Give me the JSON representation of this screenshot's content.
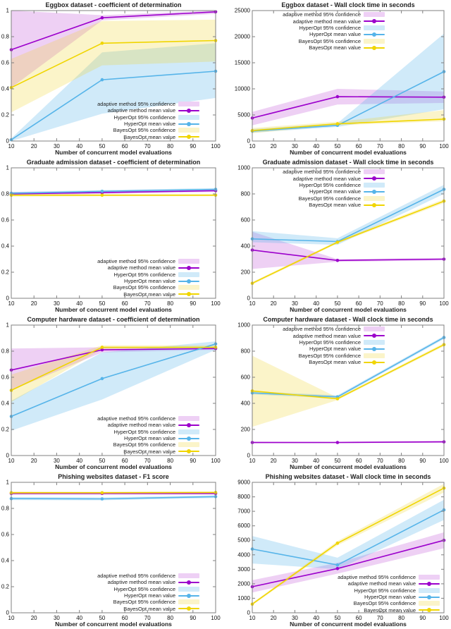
{
  "page": {
    "background": "#ffffff"
  },
  "xlabel": "Number of concurrent model evaluations",
  "legend_labels": [
    "adaptive method 95% confidence",
    "adaptive method mean value",
    "HyperOpt 95% confidence",
    "HyperOpt mean value",
    "BayesOpt 95% confidence",
    "BayesOpt mean value"
  ],
  "colors": {
    "adaptive": {
      "line": "#9c00cc",
      "band": "rgba(198,100,220,0.30)",
      "legend_band": "#eed0f5"
    },
    "hyperopt": {
      "line": "#56b4e9",
      "band": "rgba(86,180,233,0.28)",
      "legend_band": "#d0eaf9"
    },
    "bayesopt": {
      "line": "#f0d500",
      "band": "rgba(238,210,40,0.25)",
      "legend_band": "#fbf4c9"
    }
  },
  "chart_data": [
    {
      "id": "eggbox-r2",
      "type": "line",
      "title": "Eggbox dataset - coefficient of determination",
      "xlabel": "Number of concurrent model evaluations",
      "x": [
        10,
        50,
        100
      ],
      "xticks": [
        10,
        20,
        30,
        40,
        50,
        60,
        70,
        80,
        90,
        100
      ],
      "ylim": [
        0,
        1
      ],
      "yticks": [
        0,
        0.2,
        0.4,
        0.6,
        0.8,
        1
      ],
      "ytick_labels": [
        "0",
        "0.2",
        "0.4",
        "0.6",
        "0.8",
        "1"
      ],
      "series": [
        {
          "key": "adaptive",
          "name": "adaptive method",
          "mean": [
            0.7,
            0.945,
            0.99
          ],
          "lower": [
            0.41,
            0.925,
            0.975
          ],
          "upper": [
            1.0,
            0.965,
            1.0
          ]
        },
        {
          "key": "hyperopt",
          "name": "HyperOpt",
          "mean": [
            0.01,
            0.47,
            0.535
          ],
          "lower": [
            0.0,
            0.21,
            0.33
          ],
          "upper": [
            0.02,
            0.68,
            0.75
          ]
        },
        {
          "key": "bayesopt",
          "name": "BayesOpt",
          "mean": [
            0.41,
            0.75,
            0.77
          ],
          "lower": [
            0.22,
            0.58,
            0.61
          ],
          "upper": [
            0.63,
            0.92,
            0.93
          ]
        }
      ],
      "legend": {
        "pos": "bottom-right",
        "right": 37,
        "bottom": 24
      },
      "layout": {
        "ml": 16,
        "mr": 14
      }
    },
    {
      "id": "eggbox-wallclock",
      "type": "line",
      "title": "Eggbox dataset - Wall clock time in seconds",
      "xlabel": "Number of concurrent model evaluations",
      "x": [
        10,
        50,
        100
      ],
      "xticks": [
        10,
        20,
        30,
        40,
        50,
        60,
        70,
        80,
        90,
        100
      ],
      "ylim": [
        0,
        25000
      ],
      "yticks": [
        0,
        5000,
        10000,
        15000,
        20000,
        25000
      ],
      "ytick_labels": [
        "0",
        "5000",
        "10000",
        "15000",
        "20000",
        "25000"
      ],
      "series": [
        {
          "key": "adaptive",
          "name": "adaptive method",
          "mean": [
            4400,
            8500,
            8400
          ],
          "lower": [
            3000,
            7000,
            7300
          ],
          "upper": [
            5600,
            10000,
            9500
          ]
        },
        {
          "key": "hyperopt",
          "name": "HyperOpt",
          "mean": [
            1900,
            3000,
            13300
          ],
          "lower": [
            1600,
            2700,
            6100
          ],
          "upper": [
            2300,
            3400,
            20600
          ]
        },
        {
          "key": "bayesopt",
          "name": "BayesOpt",
          "mean": [
            2000,
            3300,
            4200
          ],
          "lower": [
            1500,
            3000,
            3800
          ],
          "upper": [
            2500,
            3700,
            5900
          ]
        }
      ],
      "legend": {
        "pos": "top-left",
        "right": 94,
        "top": 16
      },
      "layout": {
        "ml": 38,
        "mr": 10
      }
    },
    {
      "id": "graduate-r2",
      "type": "line",
      "title": "Graduate admission dataset - coefficient of determination",
      "xlabel": "Number of concurrent model evaluations",
      "x": [
        10,
        50,
        100
      ],
      "xticks": [
        10,
        20,
        30,
        40,
        50,
        60,
        70,
        80,
        90,
        100
      ],
      "ylim": [
        0,
        1
      ],
      "yticks": [
        0,
        0.2,
        0.4,
        0.6,
        0.8,
        1
      ],
      "ytick_labels": [
        "0",
        "0.2",
        "0.4",
        "0.6",
        "0.8",
        "1"
      ],
      "series": [
        {
          "key": "adaptive",
          "name": "adaptive method",
          "mean": [
            0.8,
            0.81,
            0.825
          ],
          "lower": [
            0.79,
            0.8,
            0.815
          ],
          "upper": [
            0.815,
            0.82,
            0.835
          ]
        },
        {
          "key": "hyperopt",
          "name": "HyperOpt",
          "mean": [
            0.805,
            0.82,
            0.835
          ],
          "lower": [
            0.795,
            0.81,
            0.825
          ],
          "upper": [
            0.815,
            0.83,
            0.845
          ]
        },
        {
          "key": "bayesopt",
          "name": "BayesOpt",
          "mean": [
            0.79,
            0.79,
            0.79
          ],
          "lower": [
            0.78,
            0.782,
            0.782
          ],
          "upper": [
            0.8,
            0.798,
            0.798
          ]
        }
      ],
      "legend": {
        "pos": "bottom-right",
        "right": 37,
        "bottom": 24
      },
      "layout": {
        "ml": 16,
        "mr": 14
      }
    },
    {
      "id": "graduate-wallclock",
      "type": "line",
      "title": "Graduate admission dataset - Wall clock time in seconds",
      "xlabel": "Number of concurrent model evaluations",
      "x": [
        10,
        50,
        100
      ],
      "xticks": [
        10,
        20,
        30,
        40,
        50,
        60,
        70,
        80,
        90,
        100
      ],
      "ylim": [
        0,
        1000
      ],
      "yticks": [
        0,
        200,
        400,
        600,
        800,
        1000
      ],
      "ytick_labels": [
        "0",
        "200",
        "400",
        "600",
        "800",
        "1000"
      ],
      "series": [
        {
          "key": "adaptive",
          "name": "adaptive method",
          "mean": [
            370,
            290,
            300
          ],
          "lower": [
            225,
            280,
            290
          ],
          "upper": [
            510,
            300,
            310
          ]
        },
        {
          "key": "hyperopt",
          "name": "HyperOpt",
          "mean": [
            455,
            435,
            835
          ],
          "lower": [
            430,
            410,
            800
          ],
          "upper": [
            515,
            460,
            870
          ]
        },
        {
          "key": "bayesopt",
          "name": "BayesOpt",
          "mean": [
            115,
            430,
            745
          ],
          "lower": [
            105,
            420,
            730
          ],
          "upper": [
            125,
            440,
            760
          ]
        }
      ],
      "legend": {
        "pos": "top-left",
        "right": 94,
        "top": 16
      },
      "layout": {
        "ml": 38,
        "mr": 10
      }
    },
    {
      "id": "hardware-r2",
      "type": "line",
      "title": "Computer hardware dataset - coefficient of determination",
      "xlabel": "Number of concurrent model evaluations",
      "x": [
        10,
        50,
        100
      ],
      "xticks": [
        10,
        20,
        30,
        40,
        50,
        60,
        70,
        80,
        90,
        100
      ],
      "ylim": [
        0,
        1
      ],
      "yticks": [
        0,
        0.2,
        0.4,
        0.6,
        0.8,
        1
      ],
      "ytick_labels": [
        "0",
        "0.2",
        "0.4",
        "0.6",
        "0.8",
        "1"
      ],
      "series": [
        {
          "key": "adaptive",
          "name": "adaptive method",
          "mean": [
            0.655,
            0.81,
            0.82
          ],
          "lower": [
            0.5,
            0.79,
            0.81
          ],
          "upper": [
            0.82,
            0.83,
            0.83
          ]
        },
        {
          "key": "hyperopt",
          "name": "HyperOpt",
          "mean": [
            0.3,
            0.59,
            0.855
          ],
          "lower": [
            0.19,
            0.43,
            0.81
          ],
          "upper": [
            0.42,
            0.79,
            0.875
          ]
        },
        {
          "key": "bayesopt",
          "name": "BayesOpt",
          "mean": [
            0.5,
            0.83,
            0.83
          ],
          "lower": [
            0.41,
            0.815,
            0.82
          ],
          "upper": [
            0.62,
            0.845,
            0.845
          ]
        }
      ],
      "legend": {
        "pos": "bottom-right",
        "right": 37,
        "bottom": 24
      },
      "layout": {
        "ml": 16,
        "mr": 14
      }
    },
    {
      "id": "hardware-wallclock",
      "type": "line",
      "title": "Computer hardware dataset - Wall clock time in seconds",
      "xlabel": "Number of concurrent model evaluations",
      "x": [
        10,
        50,
        100
      ],
      "xticks": [
        10,
        20,
        30,
        40,
        50,
        60,
        70,
        80,
        90,
        100
      ],
      "ylim": [
        0,
        1000
      ],
      "yticks": [
        0,
        200,
        400,
        600,
        800,
        1000
      ],
      "ytick_labels": [
        "0",
        "200",
        "400",
        "600",
        "800",
        "1000"
      ],
      "series": [
        {
          "key": "adaptive",
          "name": "adaptive method",
          "mean": [
            100,
            100,
            105
          ],
          "lower": [
            92,
            94,
            98
          ],
          "upper": [
            108,
            106,
            112
          ]
        },
        {
          "key": "hyperopt",
          "name": "HyperOpt",
          "mean": [
            480,
            450,
            905
          ],
          "lower": [
            468,
            438,
            893
          ],
          "upper": [
            492,
            462,
            917
          ]
        },
        {
          "key": "bayesopt",
          "name": "BayesOpt",
          "mean": [
            495,
            435,
            850
          ],
          "lower": [
            220,
            425,
            838
          ],
          "upper": [
            765,
            445,
            862
          ]
        }
      ],
      "legend": {
        "pos": "top-left",
        "right": 94,
        "top": 16
      },
      "layout": {
        "ml": 38,
        "mr": 10
      }
    },
    {
      "id": "phishing-f1",
      "type": "line",
      "title": "Phishing websites dataset - F1 score",
      "xlabel": "Number of concurrent model evaluations",
      "x": [
        10,
        50,
        100
      ],
      "xticks": [
        10,
        20,
        30,
        40,
        50,
        60,
        70,
        80,
        90,
        100
      ],
      "ylim": [
        0,
        1
      ],
      "yticks": [
        0,
        0.2,
        0.4,
        0.6,
        0.8,
        1
      ],
      "ytick_labels": [
        "0",
        "0.2",
        "0.4",
        "0.6",
        "0.8",
        "1"
      ],
      "series": [
        {
          "key": "adaptive",
          "name": "adaptive method",
          "mean": [
            0.915,
            0.915,
            0.915
          ],
          "lower": [
            0.905,
            0.905,
            0.905
          ],
          "upper": [
            0.925,
            0.925,
            0.925
          ]
        },
        {
          "key": "hyperopt",
          "name": "HyperOpt",
          "mean": [
            0.875,
            0.873,
            0.89
          ],
          "lower": [
            0.863,
            0.862,
            0.88
          ],
          "upper": [
            0.887,
            0.884,
            0.9
          ]
        },
        {
          "key": "bayesopt",
          "name": "BayesOpt",
          "mean": [
            0.92,
            0.92,
            0.922
          ],
          "lower": [
            0.91,
            0.912,
            0.915
          ],
          "upper": [
            0.93,
            0.928,
            0.93
          ]
        }
      ],
      "legend": {
        "pos": "bottom-right",
        "right": 37,
        "bottom": 24
      },
      "layout": {
        "ml": 16,
        "mr": 14
      }
    },
    {
      "id": "phishing-wallclock",
      "type": "line",
      "title": "Phishing websites dataset - Wall clock time in seconds",
      "xlabel": "Number of concurrent model evaluations",
      "x": [
        10,
        50,
        100
      ],
      "xticks": [
        10,
        20,
        30,
        40,
        50,
        60,
        70,
        80,
        90,
        100
      ],
      "ylim": [
        0,
        9000
      ],
      "yticks": [
        0,
        1000,
        2000,
        3000,
        4000,
        5000,
        6000,
        7000,
        8000,
        9000
      ],
      "ytick_labels": [
        "0",
        "1000",
        "2000",
        "3000",
        "4000",
        "5000",
        "6000",
        "7000",
        "8000",
        "9000"
      ],
      "series": [
        {
          "key": "adaptive",
          "name": "adaptive method",
          "mean": [
            1800,
            3050,
            5000
          ],
          "lower": [
            1400,
            2700,
            4450
          ],
          "upper": [
            2250,
            3450,
            5550
          ]
        },
        {
          "key": "hyperopt",
          "name": "HyperOpt",
          "mean": [
            4400,
            3300,
            7100
          ],
          "lower": [
            3400,
            3000,
            6400
          ],
          "upper": [
            5300,
            3800,
            7800
          ]
        },
        {
          "key": "bayesopt",
          "name": "BayesOpt",
          "mean": [
            600,
            4800,
            8600
          ],
          "lower": [
            520,
            4650,
            8300
          ],
          "upper": [
            680,
            4950,
            8900
          ]
        }
      ],
      "legend": {
        "pos": "bottom-right",
        "right": 16,
        "bottom": 22
      },
      "layout": {
        "ml": 38,
        "mr": 10
      }
    }
  ]
}
